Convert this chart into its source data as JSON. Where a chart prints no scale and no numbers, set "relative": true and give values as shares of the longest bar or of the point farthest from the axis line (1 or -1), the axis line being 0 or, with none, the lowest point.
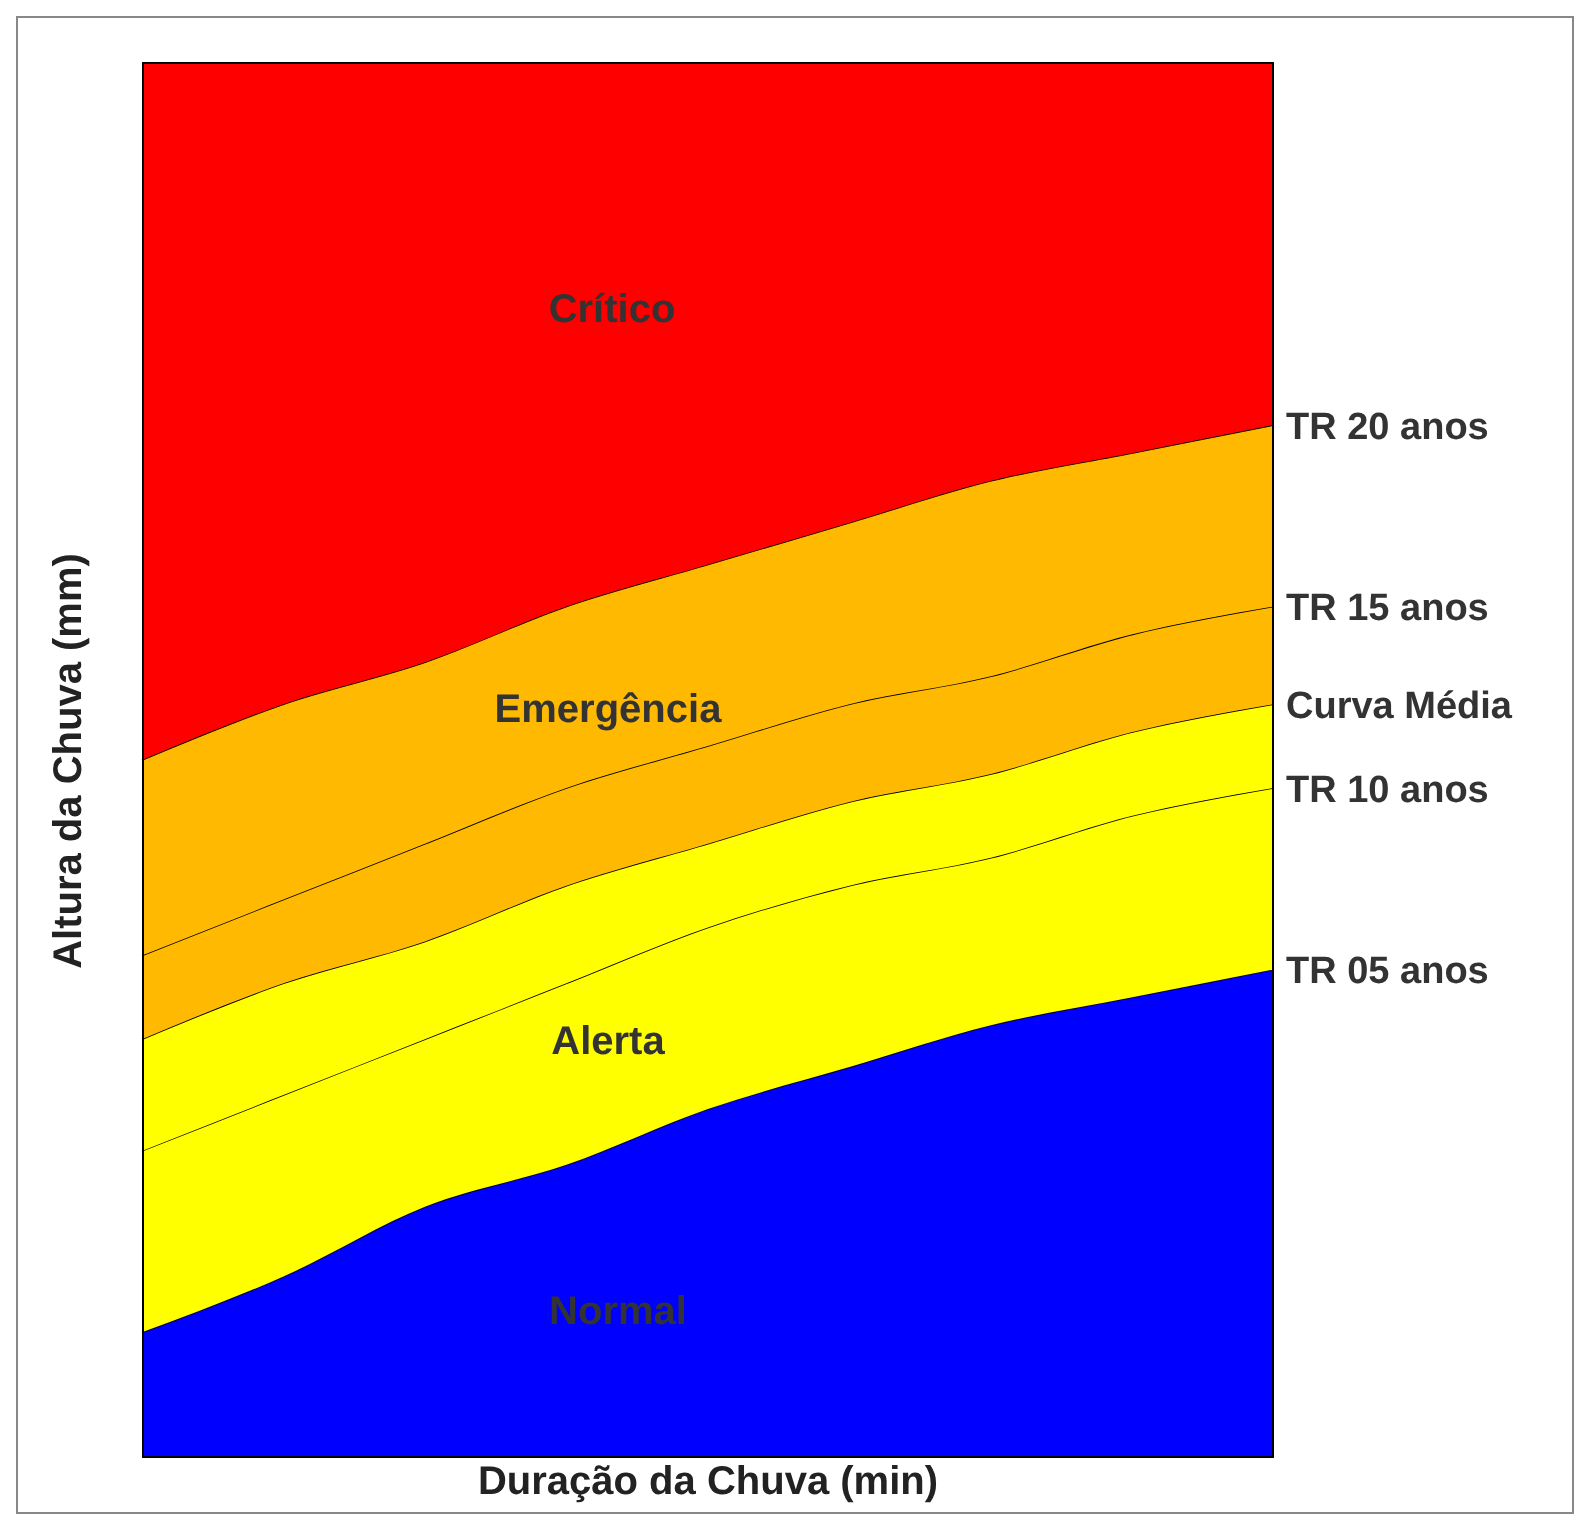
{
  "chart_data": {
    "type": "area",
    "relative": true,
    "stacked": true,
    "xlabel": "Duração da Chuva (min)",
    "ylabel": "Altura da Chuva (mm)",
    "categories": [
      null,
      null,
      null,
      null,
      null,
      null,
      null,
      null,
      null
    ],
    "grid": false,
    "legend": false,
    "marker": "none",
    "annotations": [
      "Crítico",
      "Emergência",
      "Alerta",
      "Normal"
    ],
    "series": [
      {
        "name": "TR 05 anos",
        "color": "#0000ff",
        "values": [
          0.09,
          0.13,
          0.18,
          0.21,
          0.25,
          0.28,
          0.31,
          0.33,
          0.35
        ]
      },
      {
        "name": "TR 10 anos",
        "color": "#ffff00",
        "values": [
          0.13,
          0.13,
          0.12,
          0.13,
          0.13,
          0.13,
          0.12,
          0.13,
          0.13
        ]
      },
      {
        "name": "Curva Média",
        "color": "#ffff00",
        "values": [
          0.08,
          0.08,
          0.07,
          0.07,
          0.06,
          0.06,
          0.06,
          0.06,
          0.06
        ]
      },
      {
        "name": "TR 15 anos",
        "color": "#ffb900",
        "values": [
          0.06,
          0.06,
          0.07,
          0.07,
          0.07,
          0.07,
          0.07,
          0.07,
          0.07
        ]
      },
      {
        "name": "TR 20 anos",
        "color": "#ffb900",
        "values": [
          0.14,
          0.14,
          0.13,
          0.13,
          0.13,
          0.13,
          0.14,
          0.13,
          0.13
        ]
      },
      {
        "color": "#ff0000",
        "values": [
          0.5,
          0.46,
          0.43,
          0.39,
          0.36,
          0.33,
          0.3,
          0.28,
          0.26
        ]
      }
    ]
  }
}
